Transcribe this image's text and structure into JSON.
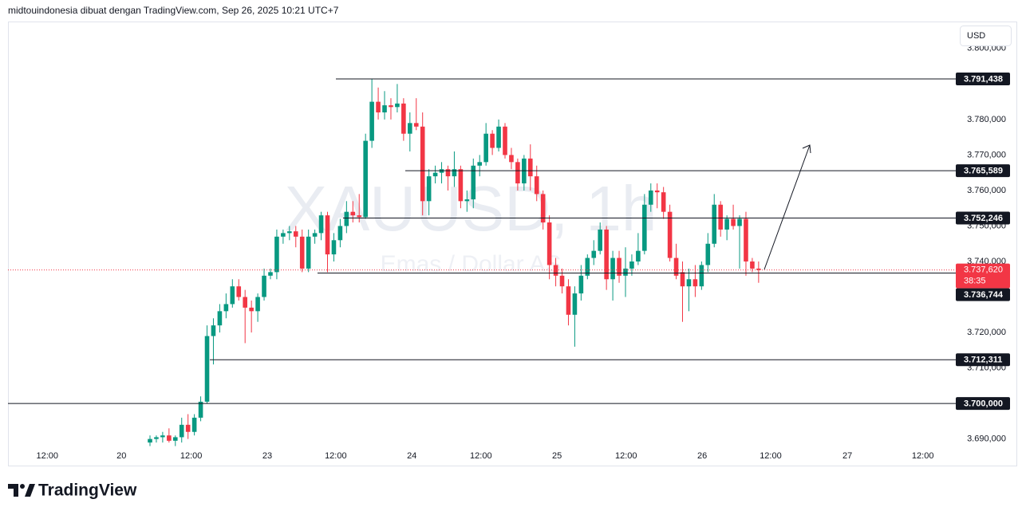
{
  "header": {
    "attribution": "midtouindonesia dibuat dengan TradingView.com, Sep 26, 2025 10:21 UTC+7",
    "currency": "USD"
  },
  "footer": {
    "brand": "TradingView"
  },
  "chart_data": {
    "type": "candlestick",
    "watermark": {
      "symbol": "XAUUSD, 1h",
      "description": "Emas / Dollar AS"
    },
    "up_color": "#089981",
    "down_color": "#f23645",
    "grid": false,
    "xlim": [
      -5.4,
      144.1
    ],
    "ylim": [
      3687900,
      3807600
    ],
    "xticks": [
      {
        "value": 0.8,
        "label": "12:00"
      },
      {
        "value": 12.5,
        "label": "20"
      },
      {
        "value": 23.5,
        "label": "12:00"
      },
      {
        "value": 35.5,
        "label": "23"
      },
      {
        "value": 46.3,
        "label": "12:00"
      },
      {
        "value": 58.3,
        "label": "24"
      },
      {
        "value": 69.2,
        "label": "12:00"
      },
      {
        "value": 81.2,
        "label": "25"
      },
      {
        "value": 92.1,
        "label": "12:00"
      },
      {
        "value": 104.1,
        "label": "26"
      },
      {
        "value": 114.9,
        "label": "12:00"
      },
      {
        "value": 127,
        "label": "27"
      },
      {
        "value": 138.9,
        "label": "12:00"
      }
    ],
    "yticks": [
      {
        "value": 3800000,
        "label": "3.800,000"
      },
      {
        "value": 3780000,
        "label": "3.780,000"
      },
      {
        "value": 3770000,
        "label": "3.770,000"
      },
      {
        "value": 3760000,
        "label": "3.760,000"
      },
      {
        "value": 3750000,
        "label": "3.750,000"
      },
      {
        "value": 3740000,
        "label": "3.740,000"
      },
      {
        "value": 3720000,
        "label": "3.720,000"
      },
      {
        "value": 3710000,
        "label": "3.710,000"
      },
      {
        "value": 3690000,
        "label": "3.690,000"
      }
    ],
    "x": [
      17,
      18,
      19,
      20,
      21,
      22,
      23,
      24,
      25,
      26,
      27,
      28,
      29,
      30,
      31,
      32,
      33,
      34,
      35,
      36,
      37,
      38,
      39,
      40,
      41,
      42,
      43,
      44,
      45,
      46,
      47,
      48,
      49,
      50,
      51,
      52,
      53,
      54,
      55,
      56,
      57,
      58,
      59,
      60,
      61,
      62,
      63,
      64,
      65,
      66,
      67,
      68,
      69,
      70,
      71,
      72,
      73,
      74,
      75,
      76,
      77,
      78,
      79,
      80,
      81,
      82,
      83,
      84,
      85,
      86,
      87,
      88,
      89,
      90,
      91,
      92,
      93,
      94,
      95,
      96,
      97,
      98,
      99,
      100,
      101,
      102,
      103,
      104,
      105,
      106,
      107,
      108,
      109,
      110,
      111,
      112,
      113
    ],
    "open": [
      3689000,
      3690000,
      3690500,
      3691000,
      3689500,
      3690500,
      3694000,
      3692000,
      3696000,
      3700500,
      3719000,
      3722000,
      3726000,
      3728000,
      3733000,
      3730000,
      3727000,
      3726000,
      3730000,
      3736000,
      3737000,
      3747000,
      3748000,
      3748500,
      3747000,
      3738000,
      3747000,
      3748000,
      3753000,
      3742000,
      3746000,
      3750000,
      3754000,
      3753000,
      3752500,
      3774000,
      3785000,
      3782000,
      3784000,
      3783500,
      3784500,
      3776000,
      3779000,
      3778000,
      3757000,
      3764000,
      3765000,
      3766000,
      3764000,
      3766000,
      3757000,
      3757500,
      3767000,
      3768000,
      3776000,
      3772000,
      3778000,
      3770000,
      3768000,
      3762000,
      3769000,
      3764000,
      3759000,
      3751000,
      3739000,
      3736000,
      3733000,
      3725000,
      3731000,
      3736000,
      3741000,
      3743000,
      3749000,
      3735000,
      3741000,
      3736000,
      3738000,
      3740000,
      3743000,
      3756000,
      3760000,
      3759500,
      3754000,
      3741000,
      3737000,
      3733000,
      3735000,
      3733000,
      3739000,
      3745000,
      3756000,
      3749000,
      3752000,
      3750000,
      3752000,
      3740000,
      3738000
    ],
    "high": [
      3691000,
      3691000,
      3692000,
      3693000,
      3691000,
      3696000,
      3697000,
      3697000,
      3702000,
      3722000,
      3724000,
      3728000,
      3731000,
      3735000,
      3735000,
      3732000,
      3729000,
      3731000,
      3738000,
      3738000,
      3749000,
      3749000,
      3750000,
      3750000,
      3749000,
      3749000,
      3749000,
      3754000,
      3754000,
      3748000,
      3752000,
      3757000,
      3757000,
      3759000,
      3776000,
      3791438,
      3789000,
      3788000,
      3786000,
      3790000,
      3786000,
      3782000,
      3786000,
      3782000,
      3766000,
      3767000,
      3768000,
      3767000,
      3771000,
      3767000,
      3760000,
      3769000,
      3770000,
      3779000,
      3777000,
      3780000,
      3779000,
      3772000,
      3769000,
      3770000,
      3773000,
      3767000,
      3760000,
      3753000,
      3741000,
      3738000,
      3735000,
      3733000,
      3739000,
      3742000,
      3746000,
      3751000,
      3750000,
      3743000,
      3743000,
      3744000,
      3742000,
      3748000,
      3759000,
      3762000,
      3762000,
      3761000,
      3756000,
      3745000,
      3740000,
      3738000,
      3739000,
      3740000,
      3748000,
      3759000,
      3757000,
      3753000,
      3756000,
      3753000,
      3754000,
      3741000,
      3740000
    ],
    "low": [
      3688000,
      3689000,
      3689000,
      3689000,
      3688000,
      3689000,
      3690000,
      3691000,
      3695000,
      3700000,
      3711000,
      3720000,
      3724000,
      3727000,
      3729000,
      3717000,
      3720000,
      3723000,
      3729000,
      3735000,
      3735000,
      3745000,
      3746000,
      3744000,
      3737000,
      3737000,
      3745000,
      3746000,
      3737000,
      3740000,
      3744000,
      3748000,
      3751000,
      3751000,
      3752000,
      3772000,
      3780000,
      3780000,
      3780000,
      3782000,
      3774000,
      3771000,
      3777000,
      3753000,
      3753000,
      3762000,
      3762000,
      3760000,
      3761000,
      3755000,
      3754000,
      3755000,
      3764000,
      3767000,
      3770000,
      3771000,
      3769000,
      3766000,
      3760000,
      3760000,
      3760000,
      3757000,
      3749000,
      3735000,
      3733000,
      3731000,
      3722000,
      3716000,
      3729000,
      3735000,
      3739000,
      3742000,
      3732000,
      3729000,
      3734000,
      3730000,
      3736000,
      3739000,
      3742000,
      3754000,
      3755000,
      3752000,
      3740000,
      3735000,
      3723000,
      3726000,
      3730000,
      3732000,
      3737000,
      3744000,
      3747000,
      3746000,
      3749000,
      3738000,
      3736000,
      3737000,
      3734000
    ],
    "close": [
      3690000,
      3690500,
      3691000,
      3689500,
      3690500,
      3694000,
      3692000,
      3696000,
      3700500,
      3719000,
      3722000,
      3726000,
      3728000,
      3733000,
      3730000,
      3727000,
      3726000,
      3730000,
      3736000,
      3737000,
      3747000,
      3748000,
      3748500,
      3747000,
      3738000,
      3747000,
      3748000,
      3753000,
      3742000,
      3746000,
      3750000,
      3754000,
      3753000,
      3752500,
      3774000,
      3785000,
      3782000,
      3784000,
      3783500,
      3784500,
      3776000,
      3779000,
      3778000,
      3757000,
      3764000,
      3765000,
      3766000,
      3764000,
      3766000,
      3757000,
      3757500,
      3767000,
      3768000,
      3776000,
      3772000,
      3778000,
      3770000,
      3768000,
      3762000,
      3769000,
      3764000,
      3759000,
      3751000,
      3739000,
      3736000,
      3733000,
      3725000,
      3731000,
      3736000,
      3741000,
      3743000,
      3749000,
      3735000,
      3741000,
      3736000,
      3738000,
      3740000,
      3743000,
      3756000,
      3760000,
      3759500,
      3754000,
      3741000,
      3736000,
      3733000,
      3735000,
      3733000,
      3739000,
      3745000,
      3756000,
      3749000,
      3752000,
      3750000,
      3752000,
      3740000,
      3738000,
      3737620
    ],
    "levels": [
      {
        "value": 3791438,
        "label": "3.791,438"
      },
      {
        "value": 3765589,
        "label": "3.765,589"
      },
      {
        "value": 3752246,
        "label": "3.752,246"
      },
      {
        "value": 3736744,
        "label": "3.736,744"
      },
      {
        "value": 3712311,
        "label": "3.712,311"
      },
      {
        "value": 3700000,
        "label": "3.700,000"
      }
    ],
    "last_price": {
      "value": 3737620,
      "label": "3.737,620",
      "countdown": "38:35"
    }
  }
}
